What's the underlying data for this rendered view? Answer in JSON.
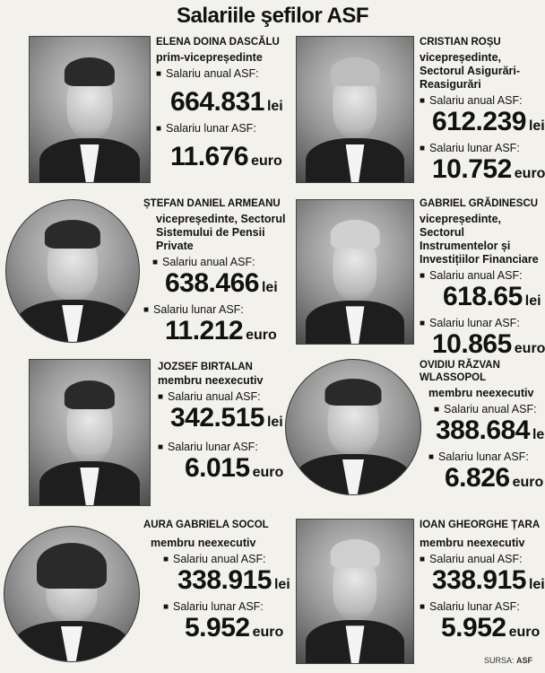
{
  "title": "Salariile şefilor ASF",
  "labels": {
    "annual": "Salariu anual ASF:",
    "monthly": "Salariu lunar ASF:"
  },
  "people": [
    {
      "name": "ELENA DOINA DASCĂLU",
      "role": "prim-vicepreședinte",
      "annual": "664.831",
      "annual_unit": "lei",
      "monthly": "11.676",
      "monthly_unit": "euro"
    },
    {
      "name": "CRISTIAN ROȘU",
      "role": "vicepreședinte, Sectorul Asigurări-Reasigurări",
      "annual": "612.239",
      "annual_unit": "lei",
      "monthly": "10.752",
      "monthly_unit": "euro"
    },
    {
      "name": "ȘTEFAN DANIEL ARMEANU",
      "role": "vicepreședinte, Sectorul Sistemului de Pensii Private",
      "annual": "638.466",
      "annual_unit": "lei",
      "monthly": "11.212",
      "monthly_unit": "euro"
    },
    {
      "name": "GABRIEL GRĂDINESCU",
      "role": "vicepreședinte, Sectorul Instrumentelor și Investițiilor Financiare",
      "annual": "618.65",
      "annual_unit": "lei",
      "monthly": "10.865",
      "monthly_unit": "euro"
    },
    {
      "name": "JOZSEF BIRTALAN",
      "role": "membru neexecutiv",
      "annual": "342.515",
      "annual_unit": "lei",
      "monthly": "6.015",
      "monthly_unit": "euro"
    },
    {
      "name": "OVIDIU RĂZVAN WLASSOPOL",
      "role": "membru neexecutiv",
      "annual": "388.684",
      "annual_unit": "lei",
      "monthly": "6.826",
      "monthly_unit": "euro"
    },
    {
      "name": "AURA GABRIELA SOCOL",
      "role": "membru neexecutiv",
      "annual": "338.915",
      "annual_unit": "lei",
      "monthly": "5.952",
      "monthly_unit": "euro"
    },
    {
      "name": "IOAN GHEORGHE ȚARA",
      "role": "membru neexecutiv",
      "annual": "338.915",
      "annual_unit": "lei",
      "monthly": "5.952",
      "monthly_unit": "euro"
    }
  ],
  "source": {
    "prefix": "SURSA:",
    "name": "ASF"
  }
}
